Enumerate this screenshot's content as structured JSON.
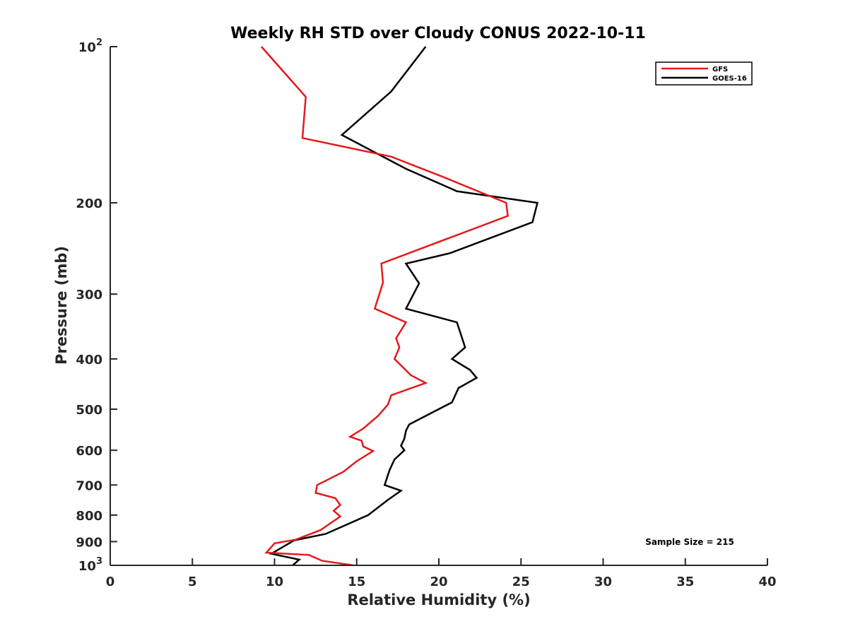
{
  "chart_data": {
    "type": "line",
    "title": "Weekly RH STD over Cloudy CONUS 2022-10-11",
    "xlabel": "Relative Humidity (%)",
    "ylabel": "Pressure (mb)",
    "xlim": [
      0,
      40
    ],
    "ylim": [
      100,
      1000
    ],
    "y_scale": "log",
    "y_reversed": true,
    "x_ticks": [
      "0",
      "5",
      "10",
      "15",
      "20",
      "25",
      "30",
      "35",
      "40"
    ],
    "x_tick_values": [
      0,
      5,
      10,
      15,
      20,
      25,
      30,
      35,
      40
    ],
    "y_ticks": [
      {
        "value": 100,
        "base": "10",
        "exp": "2"
      },
      {
        "value": 200,
        "label": "200"
      },
      {
        "value": 300,
        "label": "300"
      },
      {
        "value": 400,
        "label": "400"
      },
      {
        "value": 500,
        "label": "500"
      },
      {
        "value": 600,
        "label": "600"
      },
      {
        "value": 700,
        "label": "700"
      },
      {
        "value": 800,
        "label": "800"
      },
      {
        "value": 900,
        "label": "900"
      },
      {
        "value": 1000,
        "base": "10",
        "exp": "3"
      }
    ],
    "grid": false,
    "legend_position": "top-right",
    "annotation": "Sample Size = 215",
    "series": [
      {
        "name": "GFS",
        "color": "#e31a1c",
        "points": [
          [
            9.2,
            100
          ],
          [
            11.9,
            125
          ],
          [
            11.7,
            150
          ],
          [
            17.1,
            163
          ],
          [
            20.2,
            178
          ],
          [
            24.1,
            200
          ],
          [
            24.2,
            212
          ],
          [
            16.5,
            262
          ],
          [
            16.6,
            285
          ],
          [
            16.1,
            320
          ],
          [
            18.0,
            340
          ],
          [
            17.4,
            365
          ],
          [
            17.6,
            380
          ],
          [
            17.3,
            400
          ],
          [
            18.3,
            430
          ],
          [
            19.2,
            445
          ],
          [
            17.1,
            470
          ],
          [
            16.9,
            490
          ],
          [
            16.3,
            515
          ],
          [
            15.4,
            545
          ],
          [
            14.6,
            565
          ],
          [
            15.3,
            575
          ],
          [
            15.4,
            590
          ],
          [
            16.0,
            602
          ],
          [
            15.0,
            630
          ],
          [
            14.2,
            660
          ],
          [
            12.6,
            700
          ],
          [
            12.5,
            725
          ],
          [
            13.7,
            742
          ],
          [
            14.0,
            765
          ],
          [
            13.6,
            785
          ],
          [
            14.0,
            805
          ],
          [
            12.8,
            855
          ],
          [
            11.3,
            892
          ],
          [
            10.0,
            907
          ],
          [
            9.5,
            945
          ],
          [
            12.1,
            955
          ],
          [
            12.9,
            980
          ],
          [
            14.8,
            1000
          ]
        ]
      },
      {
        "name": "GOES-16",
        "color": "#000000",
        "points": [
          [
            19.2,
            100
          ],
          [
            17.1,
            122
          ],
          [
            14.1,
            148
          ],
          [
            18.0,
            172
          ],
          [
            21.1,
            190
          ],
          [
            26.0,
            200
          ],
          [
            25.7,
            218
          ],
          [
            20.7,
            250
          ],
          [
            18.0,
            262
          ],
          [
            18.8,
            286
          ],
          [
            18.0,
            320
          ],
          [
            21.1,
            340
          ],
          [
            21.6,
            380
          ],
          [
            20.8,
            400
          ],
          [
            21.9,
            420
          ],
          [
            22.3,
            435
          ],
          [
            21.2,
            455
          ],
          [
            20.8,
            485
          ],
          [
            18.2,
            535
          ],
          [
            18.0,
            550
          ],
          [
            17.9,
            570
          ],
          [
            17.7,
            588
          ],
          [
            17.9,
            600
          ],
          [
            17.3,
            625
          ],
          [
            17.0,
            655
          ],
          [
            16.7,
            700
          ],
          [
            17.7,
            718
          ],
          [
            16.9,
            748
          ],
          [
            15.7,
            800
          ],
          [
            13.1,
            870
          ],
          [
            11.2,
            895
          ],
          [
            9.8,
            950
          ],
          [
            11.5,
            975
          ],
          [
            11.1,
            1000
          ]
        ]
      }
    ]
  }
}
